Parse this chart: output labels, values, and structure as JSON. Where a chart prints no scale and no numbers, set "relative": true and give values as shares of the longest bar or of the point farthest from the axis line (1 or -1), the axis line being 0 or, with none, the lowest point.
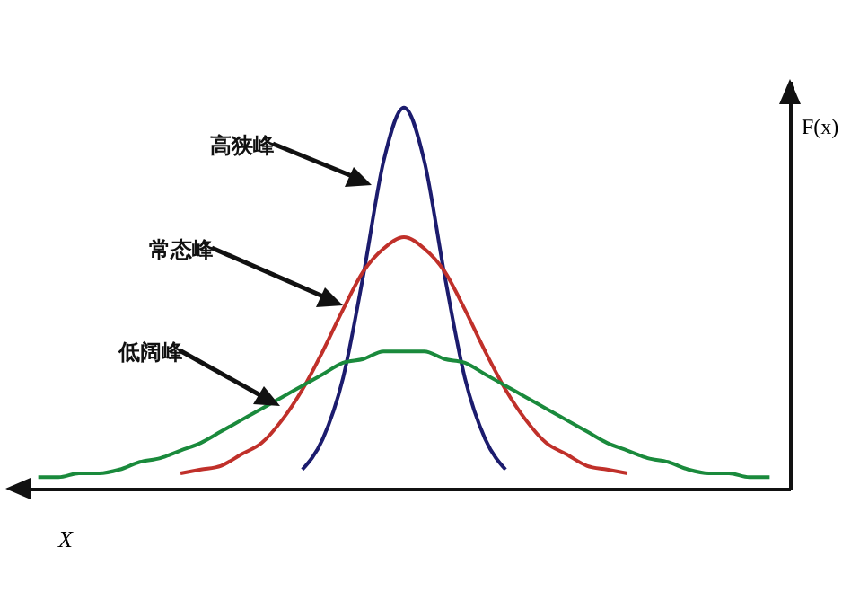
{
  "chart_data": {
    "type": "line",
    "relative": true,
    "xlabel": "X",
    "ylabel": "F(x)",
    "marker": "none",
    "annotations": [
      "高狭峰",
      "常态峰",
      "低阔峰"
    ],
    "categories": [
      null,
      null,
      null,
      null,
      null,
      null,
      null,
      null,
      null,
      null,
      null,
      null,
      null,
      null,
      null,
      null,
      null,
      null,
      null,
      null,
      null,
      null,
      null,
      null,
      null,
      null,
      null,
      null,
      null,
      null,
      null,
      null,
      null,
      null,
      null,
      null,
      null
    ],
    "series": [
      {
        "color": "#1c1c6e",
        "values": [
          null,
          null,
          null,
          null,
          null,
          null,
          null,
          null,
          null,
          null,
          null,
          null,
          null,
          0.05,
          0.13,
          0.29,
          0.56,
          0.86,
          1,
          0.86,
          0.56,
          0.29,
          0.13,
          0.05,
          null,
          null,
          null,
          null,
          null,
          null,
          null,
          null,
          null,
          null,
          null,
          null,
          null
        ]
      },
      {
        "color": "#c0302a",
        "values": [
          null,
          null,
          null,
          null,
          null,
          null,
          null,
          0.04,
          0.05,
          0.06,
          0.09,
          0.12,
          0.18,
          0.26,
          0.36,
          0.47,
          0.57,
          0.63,
          0.66,
          0.63,
          0.57,
          0.47,
          0.36,
          0.26,
          0.18,
          0.12,
          0.09,
          0.06,
          0.05,
          0.04,
          null,
          null,
          null,
          null,
          null,
          null,
          null
        ]
      },
      {
        "color": "#1a8a3c",
        "values": [
          0.03,
          0.03,
          0.04,
          0.04,
          0.05,
          0.07,
          0.08,
          0.1,
          0.12,
          0.15,
          0.18,
          0.21,
          0.24,
          0.27,
          0.3,
          0.33,
          0.34,
          0.36,
          0.36,
          0.36,
          0.34,
          0.33,
          0.3,
          0.27,
          0.24,
          0.21,
          0.18,
          0.15,
          0.12,
          0.1,
          0.08,
          0.07,
          0.05,
          0.04,
          0.04,
          0.03,
          0.03
        ]
      }
    ]
  }
}
